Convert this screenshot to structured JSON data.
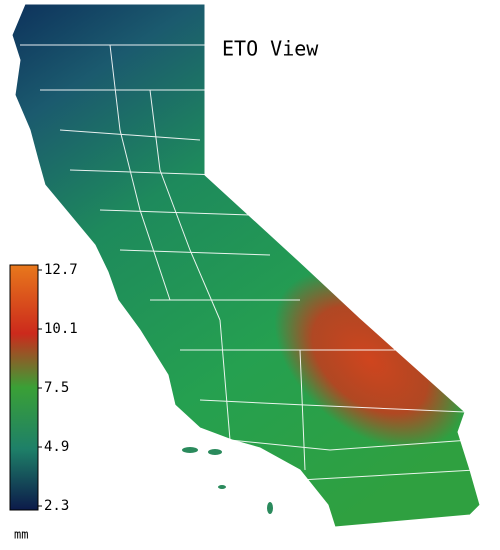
{
  "title": "ETO View",
  "legend": {
    "unit": "mm",
    "ticks": [
      12.7,
      10.1,
      7.5,
      4.9,
      2.3
    ]
  }
}
